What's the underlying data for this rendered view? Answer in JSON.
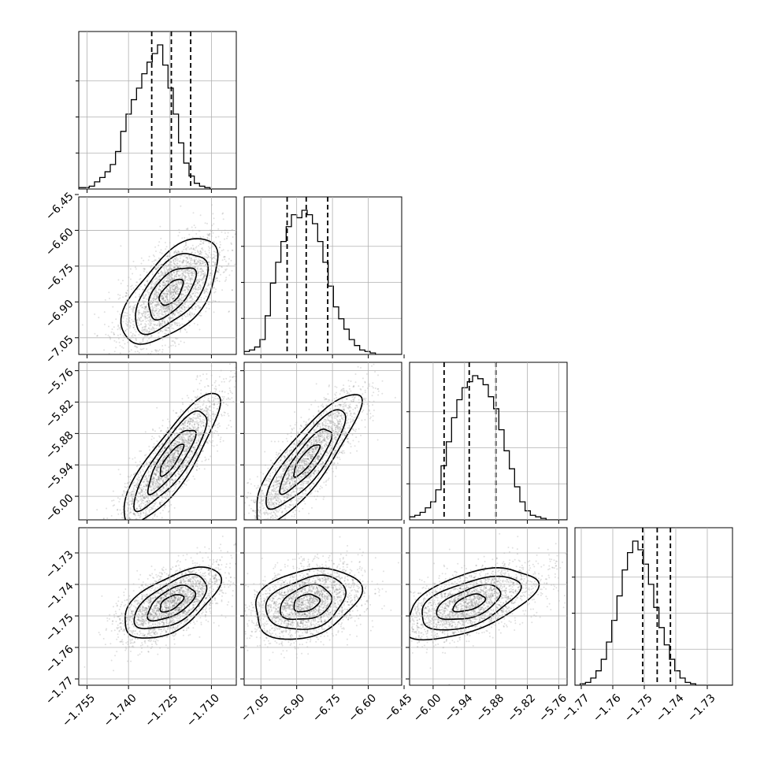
{
  "chart_data": {
    "type": "corner",
    "parameters": [
      {
        "range": [
          -1.758,
          -1.701
        ],
        "ticks": [
          -1.755,
          -1.74,
          -1.725,
          -1.71
        ],
        "tick_labels": [
          "−1.755",
          "−1.740",
          "−1.725",
          "−1.710"
        ],
        "quantiles": [
          -1.7316,
          -1.7245,
          -1.7175
        ],
        "hist": [
          0.01,
          0.01,
          0.02,
          0.05,
          0.08,
          0.12,
          0.17,
          0.26,
          0.4,
          0.52,
          0.62,
          0.7,
          0.8,
          0.88,
          0.94,
          1.0,
          0.86,
          0.7,
          0.52,
          0.32,
          0.18,
          0.09,
          0.04,
          0.02,
          0.01,
          0.0,
          0.0,
          0.0,
          0.0,
          0.0
        ]
      },
      {
        "range": [
          -7.12,
          -6.46
        ],
        "ticks": [
          -7.05,
          -6.9,
          -6.75,
          -6.6,
          -6.45
        ],
        "tick_labels": [
          "−7.05",
          "−6.90",
          "−6.75",
          "−6.60",
          "−6.45"
        ],
        "quantiles": [
          -6.94,
          -6.86,
          -6.77
        ],
        "hist": [
          0.02,
          0.03,
          0.05,
          0.1,
          0.26,
          0.48,
          0.62,
          0.76,
          0.86,
          0.94,
          0.92,
          0.97,
          0.94,
          0.88,
          0.76,
          0.62,
          0.46,
          0.32,
          0.24,
          0.17,
          0.1,
          0.06,
          0.03,
          0.02,
          0.01,
          0.0,
          0.0,
          0.0,
          0.0,
          0.0
        ]
      },
      {
        "range": [
          -6.045,
          -5.744
        ],
        "ticks": [
          -6.0,
          -5.94,
          -5.88,
          -5.82,
          -5.76
        ],
        "tick_labels": [
          "−6.00",
          "−5.94",
          "−5.88",
          "−5.82",
          "−5.76"
        ],
        "quantiles": [
          -5.979,
          -5.931,
          -5.88
        ],
        "hist": [
          0.02,
          0.03,
          0.05,
          0.08,
          0.12,
          0.2,
          0.36,
          0.52,
          0.68,
          0.8,
          0.88,
          0.92,
          0.96,
          0.94,
          0.9,
          0.82,
          0.74,
          0.6,
          0.46,
          0.34,
          0.22,
          0.12,
          0.06,
          0.03,
          0.02,
          0.01,
          0.0,
          0.0,
          0.0,
          0.0
        ]
      },
      {
        "range": [
          -1.772,
          -1.722
        ],
        "ticks": [
          -1.77,
          -1.76,
          -1.75,
          -1.74,
          -1.73
        ],
        "tick_labels": [
          "−1.77",
          "−1.76",
          "−1.75",
          "−1.74",
          "−1.73"
        ],
        "quantiles": [
          -1.7505,
          -1.7459,
          -1.7417
        ],
        "hist": [
          0.0,
          0.01,
          0.02,
          0.05,
          0.1,
          0.18,
          0.3,
          0.45,
          0.62,
          0.8,
          0.92,
          1.0,
          0.94,
          0.84,
          0.7,
          0.54,
          0.4,
          0.28,
          0.18,
          0.1,
          0.05,
          0.02,
          0.01,
          0.0,
          0.0,
          0.0,
          0.0,
          0.0,
          0.0,
          0.0
        ]
      }
    ],
    "correlations": [
      [
        0,
        1,
        0.6
      ],
      [
        0,
        2,
        0.85
      ],
      [
        1,
        2,
        0.85
      ],
      [
        0,
        3,
        0.6
      ],
      [
        1,
        3,
        0.3
      ],
      [
        2,
        3,
        0.55
      ]
    ],
    "grid": true
  }
}
